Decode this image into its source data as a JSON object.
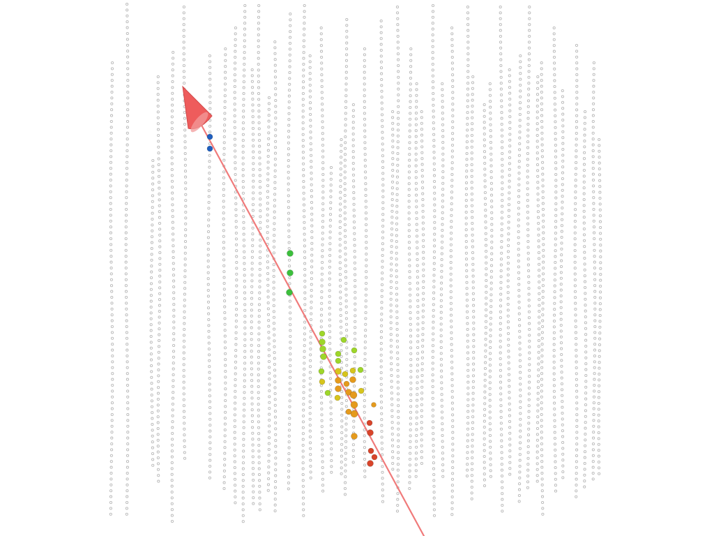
{
  "scene": {
    "background": "#ffffff",
    "sensor_color": "#b9b9b9",
    "track_color": "#f07a7a",
    "arrow_color": "#ee5c5c",
    "hit_colors": {
      "early": "#1f5fbf",
      "mid": "#3cbf3c",
      "late_green": "#9ed62a",
      "yellow": "#d7c51d",
      "orange": "#e59a1c",
      "red": "#d8442a"
    }
  }
}
